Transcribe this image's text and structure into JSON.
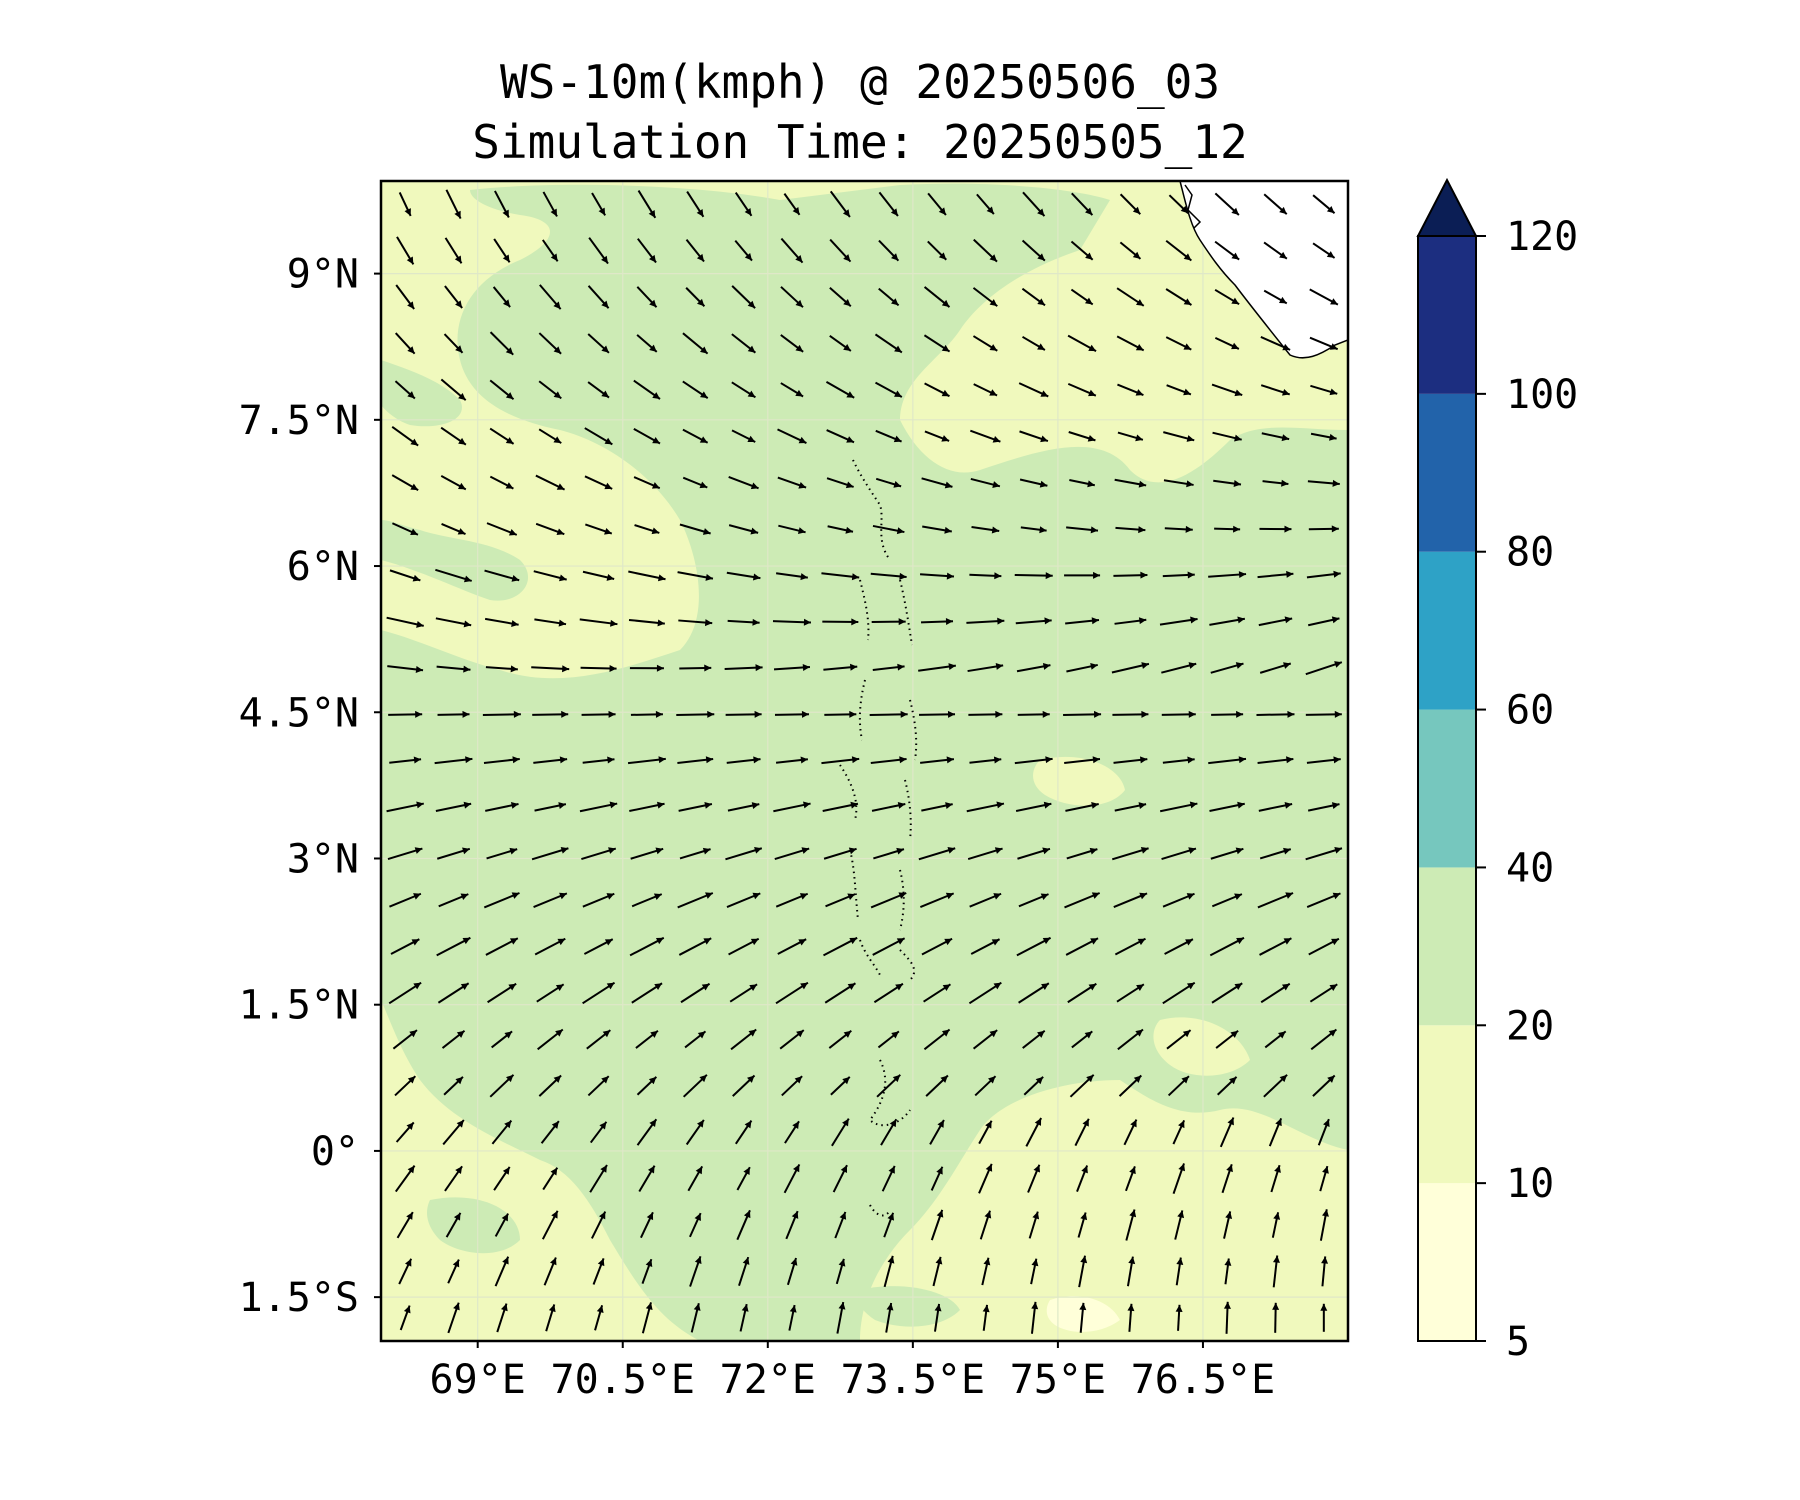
{
  "title": "WS-10m(kmph) @ 20250506_03",
  "subtitle": "Simulation Time: 20250505_12",
  "map": {
    "lon_range": [
      68.0,
      78.0
    ],
    "lat_range": [
      -1.95,
      9.95
    ],
    "lat_ticks": [
      {
        "value": 9,
        "label": "9°N"
      },
      {
        "value": 7.5,
        "label": "7.5°N"
      },
      {
        "value": 6,
        "label": "6°N"
      },
      {
        "value": 4.5,
        "label": "4.5°N"
      },
      {
        "value": 3,
        "label": "3°N"
      },
      {
        "value": 1.5,
        "label": "1.5°N"
      },
      {
        "value": 0,
        "label": "0°"
      },
      {
        "value": -1.5,
        "label": "1.5°S"
      }
    ],
    "lon_ticks": [
      {
        "value": 69,
        "label": "69°E"
      },
      {
        "value": 70.5,
        "label": "70.5°E"
      },
      {
        "value": 72,
        "label": "72°E"
      },
      {
        "value": 73.5,
        "label": "73.5°E"
      },
      {
        "value": 75,
        "label": "75°E"
      },
      {
        "value": 76.5,
        "label": "76.5°E"
      }
    ],
    "gridlines": true,
    "vector_field": "wind direction arrows"
  },
  "colorbar": {
    "levels": [
      5,
      10,
      20,
      40,
      60,
      80,
      100,
      120
    ],
    "labels": [
      "5",
      "10",
      "20",
      "40",
      "60",
      "80",
      "100",
      "120"
    ],
    "colors": [
      "#ffffd9",
      "#f0f9bd",
      "#cdebb5",
      "#76c7be",
      "#2ea2c6",
      "#2263aa",
      "#1c2e80",
      "#0b1e55"
    ],
    "extend": "max"
  }
}
